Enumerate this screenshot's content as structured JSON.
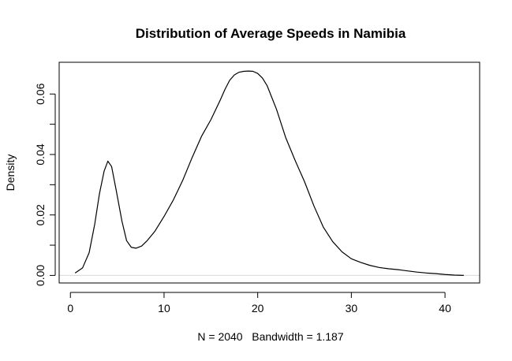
{
  "chart_data": {
    "type": "line",
    "title": "Distribution of Average Speeds in Namibia",
    "ylabel": "Density",
    "xlabel": "N = 2040   Bandwidth = 1.187",
    "xlim": [
      -1.2,
      43.7
    ],
    "ylim": [
      -0.0025,
      0.0705
    ],
    "x_ticks": [
      0,
      10,
      20,
      30,
      40
    ],
    "x_tick_labels": [
      "0",
      "10",
      "20",
      "30",
      "40"
    ],
    "y_ticks": [
      0.0,
      0.02,
      0.04,
      0.06
    ],
    "y_tick_labels": [
      "0.00",
      "0.02",
      "0.04",
      "0.06"
    ],
    "grid": false,
    "baseline_zero": true,
    "series": [
      {
        "color": "#000000",
        "x": [
          0.5,
          1.3,
          2.0,
          2.6,
          3.1,
          3.6,
          4.0,
          4.4,
          4.9,
          5.5,
          6.0,
          6.5,
          7.0,
          7.6,
          8.2,
          9.0,
          10.0,
          11.0,
          12.0,
          13.0,
          14.0,
          15.0,
          16.0,
          16.5,
          17.0,
          17.5,
          18.0,
          18.5,
          19.0,
          19.5,
          20.0,
          20.5,
          21.0,
          22.0,
          23.0,
          24.0,
          25.0,
          26.0,
          27.0,
          28.0,
          29.0,
          30.0,
          31.0,
          32.0,
          33.0,
          34.0,
          35.0,
          36.0,
          37.0,
          38.0,
          39.0,
          40.0,
          41.0,
          42.0
        ],
        "y": [
          0.0008,
          0.0025,
          0.0075,
          0.017,
          0.027,
          0.0345,
          0.0378,
          0.036,
          0.028,
          0.018,
          0.0115,
          0.0093,
          0.009,
          0.0097,
          0.0115,
          0.0145,
          0.0195,
          0.025,
          0.0315,
          0.039,
          0.046,
          0.0515,
          0.058,
          0.0615,
          0.0645,
          0.0663,
          0.0672,
          0.0675,
          0.0676,
          0.0675,
          0.0668,
          0.0653,
          0.0628,
          0.055,
          0.0455,
          0.038,
          0.031,
          0.023,
          0.016,
          0.0112,
          0.0078,
          0.0055,
          0.0043,
          0.0033,
          0.0026,
          0.0022,
          0.0019,
          0.0015,
          0.0011,
          0.0008,
          0.0006,
          0.0003,
          0.0001,
          0.0
        ]
      }
    ]
  }
}
